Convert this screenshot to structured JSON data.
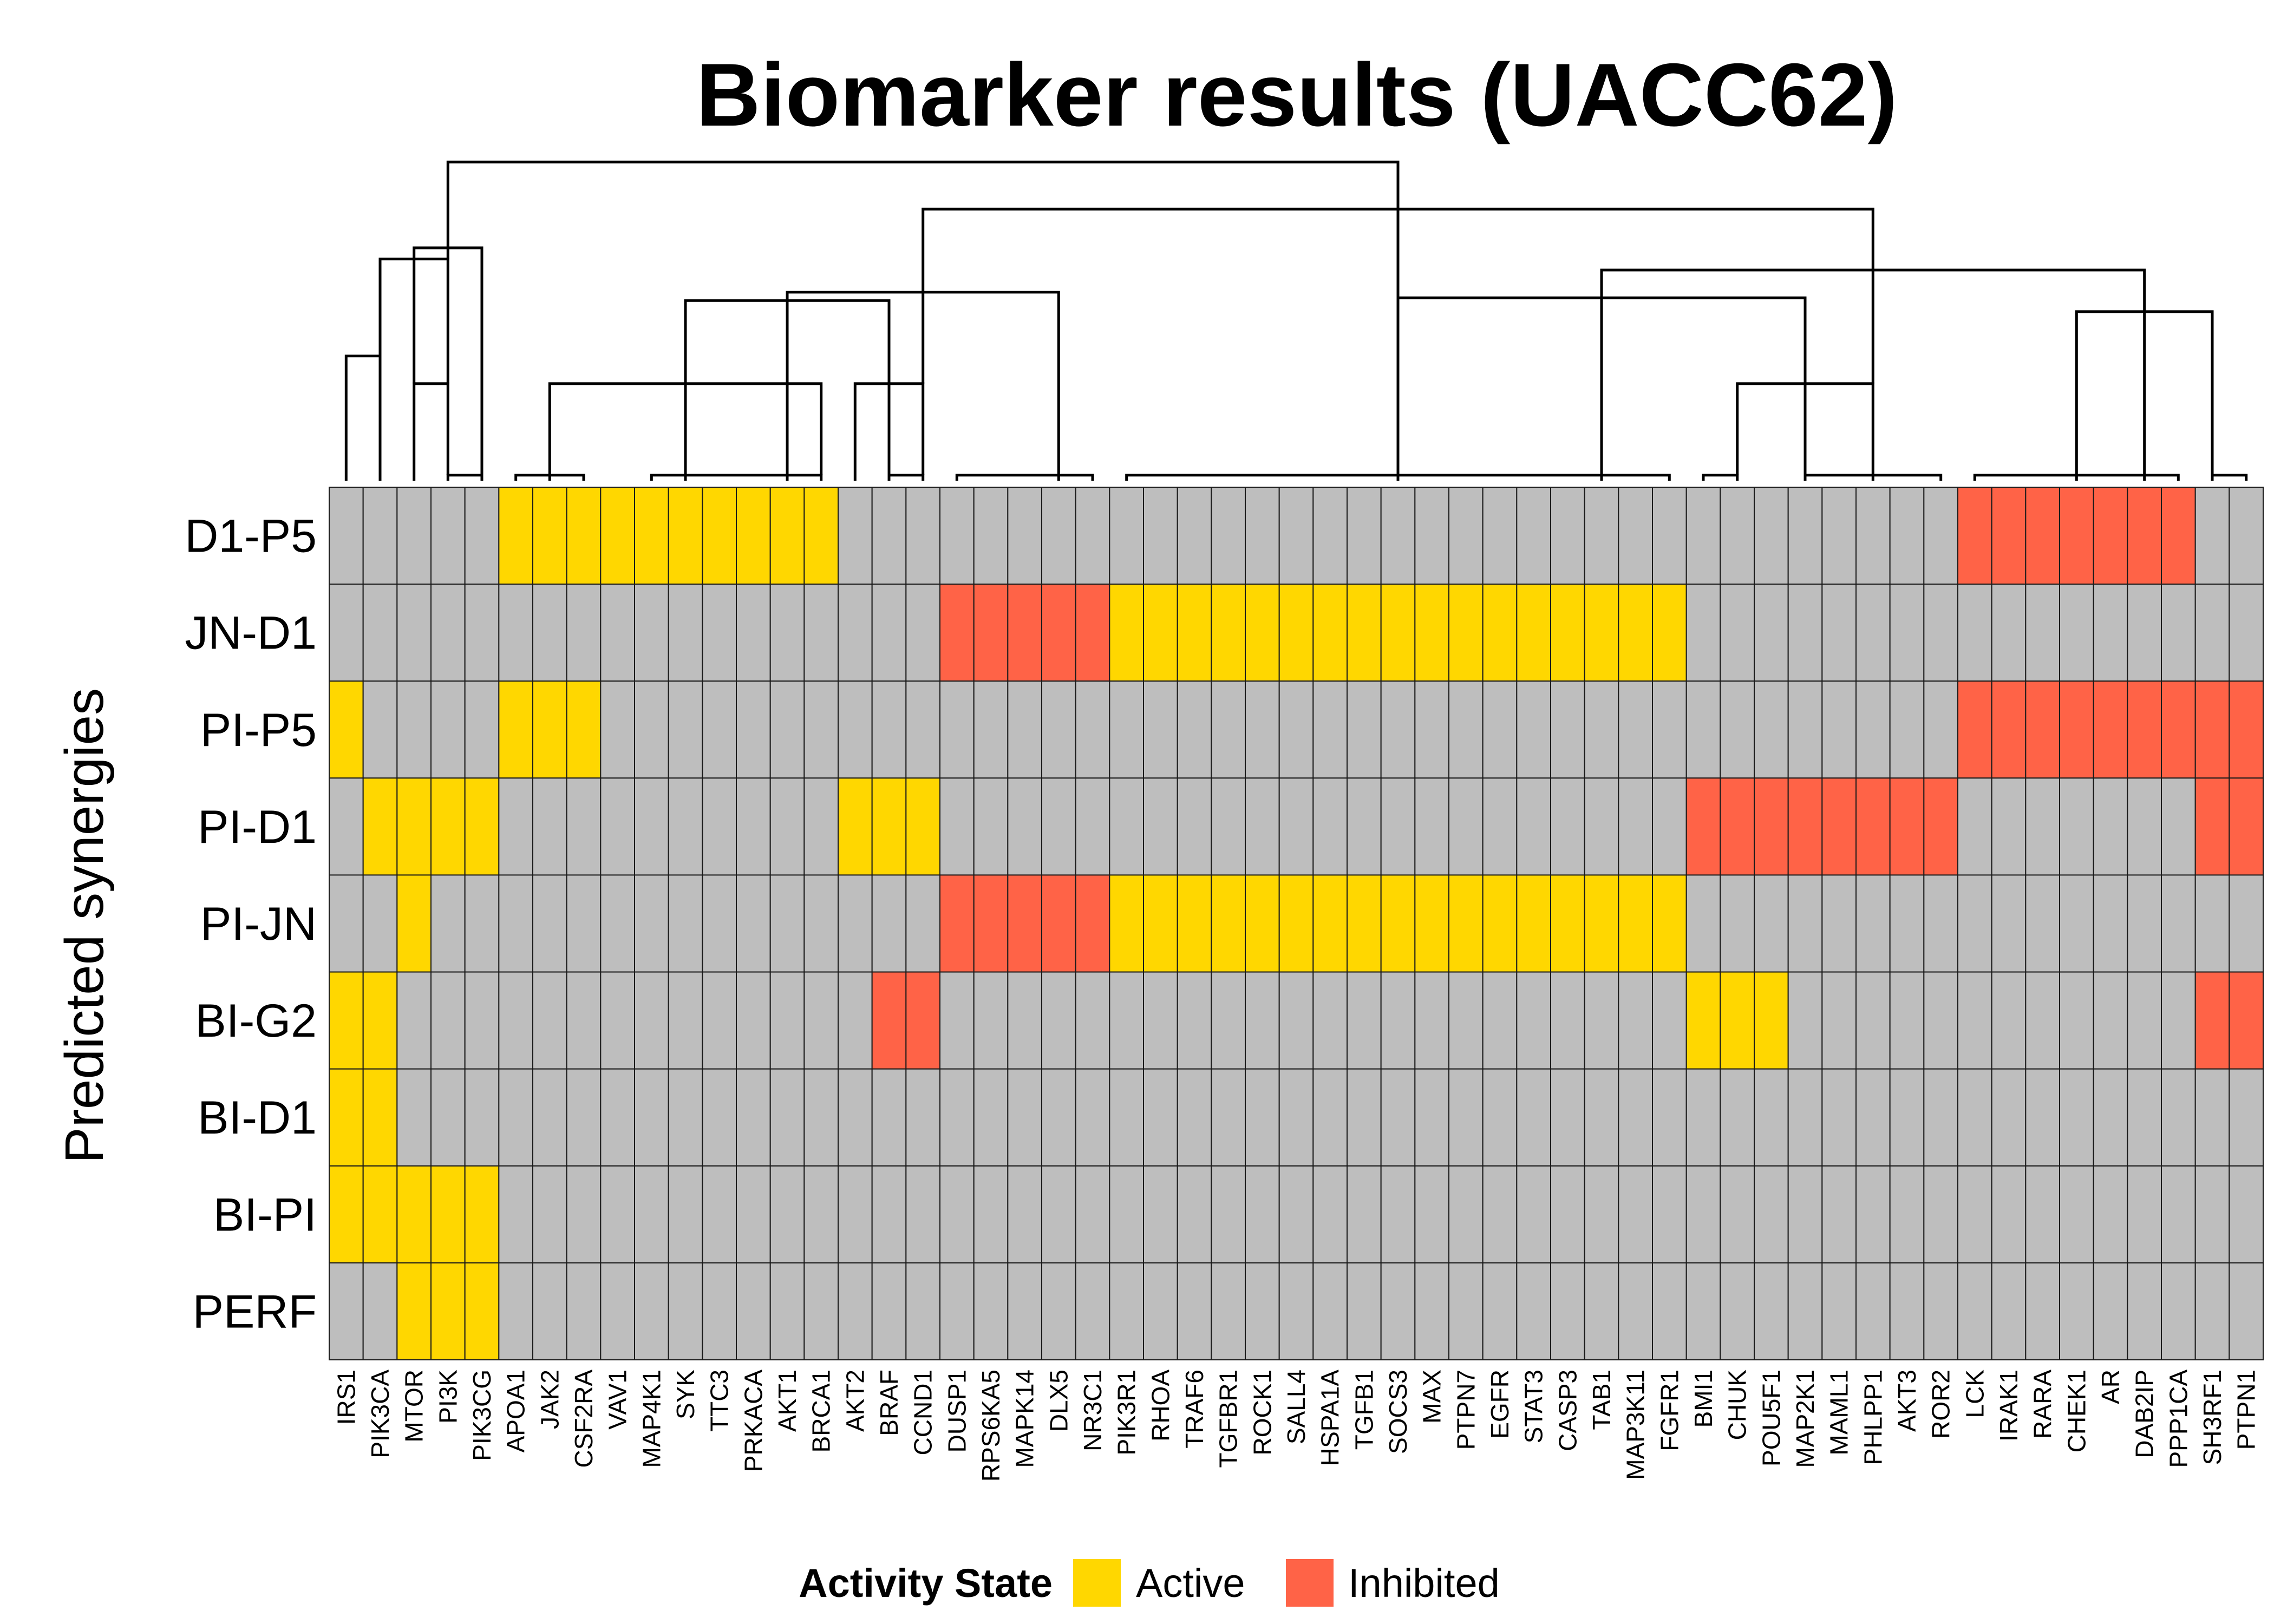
{
  "chart_data": {
    "type": "heatmap",
    "title": "Biomarker results (UACC62)",
    "ylabel": "Predicted synergies",
    "xlabel": "",
    "rows": [
      "D1-P5",
      "JN-D1",
      "PI-P5",
      "PI-D1",
      "PI-JN",
      "BI-G2",
      "BI-D1",
      "BI-PI",
      "PERF"
    ],
    "columns": [
      "IRS1",
      "PIK3CA",
      "MTOR",
      "PI3K",
      "PIK3CG",
      "APOA1",
      "JAK2",
      "CSF2RA",
      "VAV1",
      "MAP4K1",
      "SYK",
      "TTC3",
      "PRKACA",
      "AKT1",
      "BRCA1",
      "AKT2",
      "BRAF",
      "CCND1",
      "DUSP1",
      "RPS6KA5",
      "MAPK14",
      "DLX5",
      "NR3C1",
      "PIK3R1",
      "RHOA",
      "TRAF6",
      "TGFBR1",
      "ROCK1",
      "SALL4",
      "HSPA1A",
      "TGFB1",
      "SOCS3",
      "MAX",
      "PTPN7",
      "EGFR",
      "STAT3",
      "CASP3",
      "TAB1",
      "MAP3K11",
      "FGFR1",
      "BMI1",
      "CHUK",
      "POU5F1",
      "MAP2K1",
      "MAML1",
      "PHLPP1",
      "AKT3",
      "ROR2",
      "LCK",
      "IRAK1",
      "RARA",
      "CHEK1",
      "AR",
      "DAB2IP",
      "PPP1CA",
      "SH3RF1",
      "PTPN1"
    ],
    "value_legend": {
      "0": "none",
      "1": "Active",
      "-1": "Inhibited"
    },
    "values": [
      [
        0,
        0,
        0,
        0,
        0,
        1,
        1,
        1,
        1,
        1,
        1,
        1,
        1,
        1,
        1,
        0,
        0,
        0,
        0,
        0,
        0,
        0,
        0,
        0,
        0,
        0,
        0,
        0,
        0,
        0,
        0,
        0,
        0,
        0,
        0,
        0,
        0,
        0,
        0,
        0,
        0,
        0,
        0,
        0,
        0,
        0,
        0,
        0,
        -1,
        -1,
        -1,
        -1,
        -1,
        -1,
        -1,
        0,
        0
      ],
      [
        0,
        0,
        0,
        0,
        0,
        0,
        0,
        0,
        0,
        0,
        0,
        0,
        0,
        0,
        0,
        0,
        0,
        0,
        -1,
        -1,
        -1,
        -1,
        -1,
        1,
        1,
        1,
        1,
        1,
        1,
        1,
        1,
        1,
        1,
        1,
        1,
        1,
        1,
        1,
        1,
        1,
        0,
        0,
        0,
        0,
        0,
        0,
        0,
        0,
        0,
        0,
        0,
        0,
        0,
        0,
        0,
        0,
        0
      ],
      [
        1,
        0,
        0,
        0,
        0,
        1,
        1,
        1,
        0,
        0,
        0,
        0,
        0,
        0,
        0,
        0,
        0,
        0,
        0,
        0,
        0,
        0,
        0,
        0,
        0,
        0,
        0,
        0,
        0,
        0,
        0,
        0,
        0,
        0,
        0,
        0,
        0,
        0,
        0,
        0,
        0,
        0,
        0,
        0,
        0,
        0,
        0,
        0,
        -1,
        -1,
        -1,
        -1,
        -1,
        -1,
        -1,
        -1,
        -1
      ],
      [
        0,
        1,
        1,
        1,
        1,
        0,
        0,
        0,
        0,
        0,
        0,
        0,
        0,
        0,
        0,
        1,
        1,
        1,
        0,
        0,
        0,
        0,
        0,
        0,
        0,
        0,
        0,
        0,
        0,
        0,
        0,
        0,
        0,
        0,
        0,
        0,
        0,
        0,
        0,
        0,
        -1,
        -1,
        -1,
        -1,
        -1,
        -1,
        -1,
        -1,
        0,
        0,
        0,
        0,
        0,
        0,
        0,
        -1,
        -1
      ],
      [
        0,
        0,
        1,
        0,
        0,
        0,
        0,
        0,
        0,
        0,
        0,
        0,
        0,
        0,
        0,
        0,
        0,
        0,
        -1,
        -1,
        -1,
        -1,
        -1,
        1,
        1,
        1,
        1,
        1,
        1,
        1,
        1,
        1,
        1,
        1,
        1,
        1,
        1,
        1,
        1,
        1,
        0,
        0,
        0,
        0,
        0,
        0,
        0,
        0,
        0,
        0,
        0,
        0,
        0,
        0,
        0,
        0,
        0
      ],
      [
        1,
        1,
        0,
        0,
        0,
        0,
        0,
        0,
        0,
        0,
        0,
        0,
        0,
        0,
        0,
        0,
        -1,
        -1,
        0,
        0,
        0,
        0,
        0,
        0,
        0,
        0,
        0,
        0,
        0,
        0,
        0,
        0,
        0,
        0,
        0,
        0,
        0,
        0,
        0,
        0,
        1,
        1,
        1,
        0,
        0,
        0,
        0,
        0,
        0,
        0,
        0,
        0,
        0,
        0,
        0,
        -1,
        -1
      ],
      [
        1,
        1,
        0,
        0,
        0,
        0,
        0,
        0,
        0,
        0,
        0,
        0,
        0,
        0,
        0,
        0,
        0,
        0,
        0,
        0,
        0,
        0,
        0,
        0,
        0,
        0,
        0,
        0,
        0,
        0,
        0,
        0,
        0,
        0,
        0,
        0,
        0,
        0,
        0,
        0,
        0,
        0,
        0,
        0,
        0,
        0,
        0,
        0,
        0,
        0,
        0,
        0,
        0,
        0,
        0,
        0,
        0
      ],
      [
        1,
        1,
        1,
        1,
        1,
        0,
        0,
        0,
        0,
        0,
        0,
        0,
        0,
        0,
        0,
        0,
        0,
        0,
        0,
        0,
        0,
        0,
        0,
        0,
        0,
        0,
        0,
        0,
        0,
        0,
        0,
        0,
        0,
        0,
        0,
        0,
        0,
        0,
        0,
        0,
        0,
        0,
        0,
        0,
        0,
        0,
        0,
        0,
        0,
        0,
        0,
        0,
        0,
        0,
        0,
        0,
        0
      ],
      [
        0,
        0,
        1,
        1,
        1,
        0,
        0,
        0,
        0,
        0,
        0,
        0,
        0,
        0,
        0,
        0,
        0,
        0,
        0,
        0,
        0,
        0,
        0,
        0,
        0,
        0,
        0,
        0,
        0,
        0,
        0,
        0,
        0,
        0,
        0,
        0,
        0,
        0,
        0,
        0,
        0,
        0,
        0,
        0,
        0,
        0,
        0,
        0,
        0,
        0,
        0,
        0,
        0,
        0,
        0,
        0,
        0
      ]
    ],
    "dendrogram": [
      [
        0,
        1,
        0.45
      ],
      [
        2,
        3,
        0.35
      ],
      [
        3,
        4,
        0.02
      ],
      [
        1,
        3,
        0.8
      ],
      [
        2,
        4,
        0.84
      ],
      [
        5,
        7,
        0.02
      ],
      [
        6,
        14,
        0.35
      ],
      [
        9,
        14,
        0.02
      ],
      [
        15,
        17,
        0.35
      ],
      [
        16,
        17,
        0.02
      ],
      [
        10,
        16,
        0.65
      ],
      [
        18,
        22,
        0.02
      ],
      [
        13,
        21,
        0.68
      ],
      [
        23,
        39,
        0.02
      ],
      [
        40,
        41,
        0.02
      ],
      [
        43,
        47,
        0.02
      ],
      [
        41,
        45,
        0.35
      ],
      [
        31,
        43,
        0.66
      ],
      [
        48,
        54,
        0.02
      ],
      [
        55,
        56,
        0.02
      ],
      [
        51,
        55,
        0.61
      ],
      [
        37,
        53,
        0.76
      ],
      [
        17,
        45,
        0.98
      ],
      [
        3,
        31,
        1.15
      ]
    ],
    "legend": {
      "title": "Activity State",
      "items": [
        {
          "label": "Active",
          "color": "#FFD700"
        },
        {
          "label": "Inhibited",
          "color": "#FF6347"
        }
      ],
      "position": "bottom"
    },
    "colors": {
      "none": "#BEBEBE",
      "active": "#FFD700",
      "inhibited": "#FF6347"
    }
  }
}
